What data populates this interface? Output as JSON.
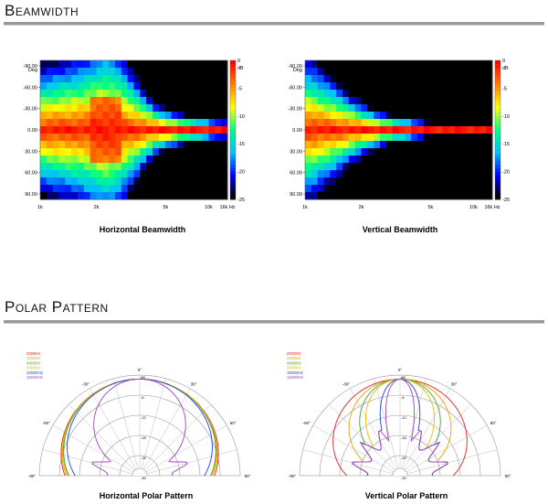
{
  "sections": {
    "beamwidth_title": "Beamwidth",
    "polar_title": "Polar Pattern"
  },
  "colors": {
    "rule": "#999999",
    "scale": [
      "#ff0000",
      "#ff8000",
      "#ffff00",
      "#00ff80",
      "#00c0ff",
      "#0000ff",
      "#000000"
    ]
  },
  "chart_data": [
    {
      "type": "heatmap",
      "title": "Horizontal Beamwidth",
      "ylabel": "Deg",
      "x_ticks": [
        "1k",
        "2k",
        "5k",
        "10k",
        "16k Hz"
      ],
      "y_ticks": [
        "-90.00",
        "-60.00",
        "-30.00",
        "0.00",
        "30.00",
        "60.00",
        "90.00"
      ],
      "colorbar_unit": "dB",
      "colorbar_ticks": [
        "0",
        "-5",
        "-10",
        "-15",
        "-20",
        "-25"
      ],
      "colorbar_range": [
        -25,
        0
      ],
      "rows": 19,
      "cols": 30,
      "width_pattern": [
        62,
        64,
        66,
        68,
        70,
        72,
        74,
        78,
        82,
        88,
        90,
        86,
        80,
        70,
        60,
        50,
        40,
        32,
        26,
        22,
        19,
        17,
        15,
        13,
        12,
        11,
        10,
        9,
        8,
        8
      ],
      "hotspot": {
        "col": 10,
        "span": 4
      }
    },
    {
      "type": "heatmap",
      "title": "Vertical Beamwidth",
      "ylabel": "Deg",
      "x_ticks": [
        "1k",
        "2k",
        "5k",
        "10k",
        "16k Hz"
      ],
      "y_ticks": [
        "-90.00",
        "-60.00",
        "-30.00",
        "0.00",
        "30.00",
        "60.00",
        "90.00"
      ],
      "colorbar_unit": "dB",
      "colorbar_ticks": [
        "0",
        "-5",
        "-10",
        "-15",
        "-20",
        "-25"
      ],
      "colorbar_range": [
        -25,
        0
      ],
      "rows": 19,
      "cols": 30,
      "width_pattern": [
        70,
        66,
        60,
        55,
        50,
        44,
        38,
        33,
        29,
        25,
        21,
        18,
        16,
        14,
        12,
        11,
        10,
        9,
        8,
        7,
        6,
        6,
        5,
        5,
        5,
        4,
        4,
        4,
        3,
        3
      ],
      "hotspot": null
    },
    {
      "type": "polar",
      "title": "Horizontal Polar Pattern",
      "legend": [
        {
          "name": "2000Hz",
          "color": "#e02020"
        },
        {
          "name": "3150Hz",
          "color": "#f0a000"
        },
        {
          "name": "4000Hz",
          "color": "#40a040"
        },
        {
          "name": "5000Hz",
          "color": "#e0c000"
        },
        {
          "name": "10000Hz",
          "color": "#2040e0"
        },
        {
          "name": "16000Hz",
          "color": "#a040c0"
        }
      ],
      "angle_labels": [
        "-90°",
        "-60°",
        "-30°",
        "0°",
        "30°",
        "60°",
        "90°"
      ],
      "ring_labels": [
        "dB",
        "-6",
        "-12",
        "-18",
        "-24",
        "-30"
      ],
      "series": [
        {
          "name": "2000Hz",
          "beam": 85,
          "lobe": 0
        },
        {
          "name": "3150Hz",
          "beam": 80,
          "lobe": 0
        },
        {
          "name": "4000Hz",
          "beam": 78,
          "lobe": 0
        },
        {
          "name": "5000Hz",
          "beam": 82,
          "lobe": 0
        },
        {
          "name": "10000Hz",
          "beam": 70,
          "lobe": 0
        },
        {
          "name": "16000Hz",
          "beam": 35,
          "lobe": 1
        }
      ]
    },
    {
      "type": "polar",
      "title": "Vertical Polar Pattern",
      "legend": [
        {
          "name": "2000Hz",
          "color": "#e02020"
        },
        {
          "name": "3150Hz",
          "color": "#f0a000"
        },
        {
          "name": "4000Hz",
          "color": "#40a040"
        },
        {
          "name": "5000Hz",
          "color": "#e0c000"
        },
        {
          "name": "10000Hz",
          "color": "#2040e0"
        },
        {
          "name": "16000Hz",
          "color": "#a040c0"
        }
      ],
      "angle_labels": [
        "-90°",
        "-60°",
        "-30°",
        "0°",
        "30°",
        "60°",
        "90°"
      ],
      "ring_labels": [
        "dB",
        "-6",
        "-12",
        "-18",
        "-24",
        "-30"
      ],
      "series": [
        {
          "name": "2000Hz",
          "beam": 60,
          "lobe": 0
        },
        {
          "name": "3150Hz",
          "beam": 40,
          "lobe": 1
        },
        {
          "name": "4000Hz",
          "beam": 30,
          "lobe": 1
        },
        {
          "name": "5000Hz",
          "beam": 25,
          "lobe": 1
        },
        {
          "name": "10000Hz",
          "beam": 14,
          "lobe": 1
        },
        {
          "name": "16000Hz",
          "beam": 10,
          "lobe": 1
        }
      ]
    }
  ]
}
